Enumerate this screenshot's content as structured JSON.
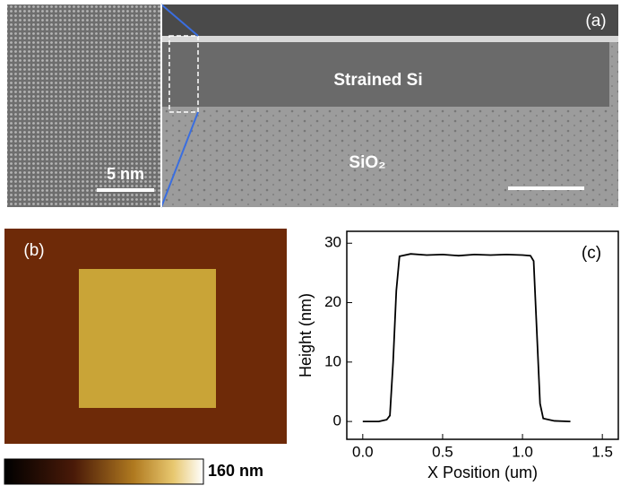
{
  "panel_a": {
    "label": "(a)",
    "layer_top": "Strained Si",
    "layer_bottom": "SiO₂",
    "scale": "5 nm"
  },
  "panel_b": {
    "label": "(b)",
    "colorbar_max": "160 nm"
  },
  "chart_data": {
    "type": "line",
    "panel_label": "(c)",
    "x_label": "X Position (um)",
    "y_label": "Height (nm)",
    "x": [
      0,
      0.05,
      0.1,
      0.15,
      0.17,
      0.19,
      0.21,
      0.23,
      0.3,
      0.4,
      0.5,
      0.6,
      0.7,
      0.8,
      0.9,
      1.0,
      1.05,
      1.07,
      1.09,
      1.11,
      1.13,
      1.2,
      1.3
    ],
    "series": [
      {
        "color": "#000000",
        "values": [
          0,
          0,
          0,
          0.3,
          1,
          10,
          22,
          27.8,
          28.2,
          28,
          28.1,
          27.9,
          28.1,
          28,
          28.1,
          28,
          27.9,
          27,
          15,
          3,
          0.5,
          0.1,
          0
        ]
      }
    ],
    "xlim": [
      -0.1,
      1.6
    ],
    "ylim": [
      -3,
      32
    ],
    "xticks": [
      {
        "value": 0,
        "label": "0.0"
      },
      0.5,
      {
        "value": 1,
        "label": "1.0"
      },
      1.5
    ],
    "yticks": [
      0,
      10,
      20,
      30
    ]
  }
}
